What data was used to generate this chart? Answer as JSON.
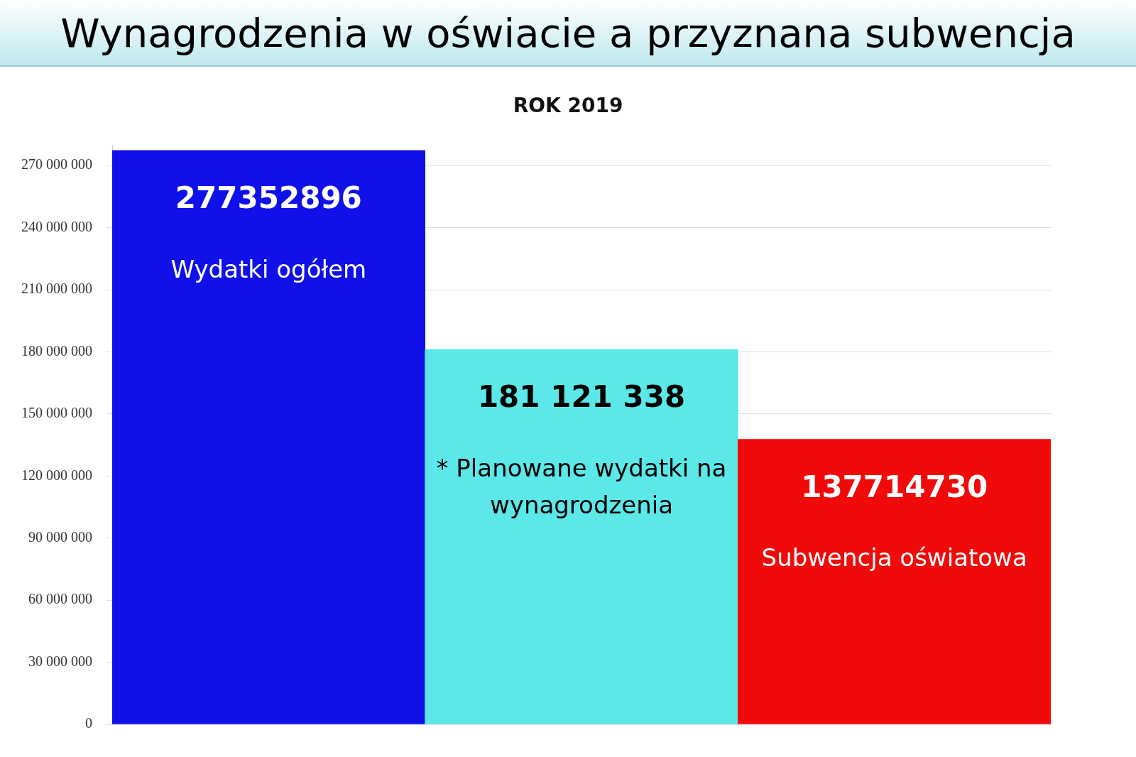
{
  "chart_data": {
    "type": "bar",
    "title": "Wynagrodzenia w oświacie a przyznana subwencja",
    "subtitle": "ROK 2019",
    "categories": [
      "Wydatki ogółem",
      "* Planowane wydatki na wynagrodzenia",
      "Subwencja oświatowa"
    ],
    "values": [
      277352896,
      181121338,
      137714730
    ],
    "value_labels": [
      "277352896",
      "181 121 338",
      "137714730"
    ],
    "colors": [
      "#1010e8",
      "#5ce8e8",
      "#f00a0a"
    ],
    "ylim": [
      0,
      280000000
    ],
    "yticks": [
      {
        "value": 0,
        "label": "0"
      },
      {
        "value": 30000000,
        "label": "30 000 000"
      },
      {
        "value": 60000000,
        "label": "60 000 000"
      },
      {
        "value": 90000000,
        "label": "90 000 000"
      },
      {
        "value": 120000000,
        "label": "120 000 000"
      },
      {
        "value": 150000000,
        "label": "150 000 000"
      },
      {
        "value": 180000000,
        "label": "180 000 000"
      },
      {
        "value": 210000000,
        "label": "210 000 000"
      },
      {
        "value": 240000000,
        "label": "240 000 000"
      },
      {
        "value": 270000000,
        "label": "270 000 000"
      }
    ],
    "grid": "y",
    "tick_labels": "y"
  }
}
